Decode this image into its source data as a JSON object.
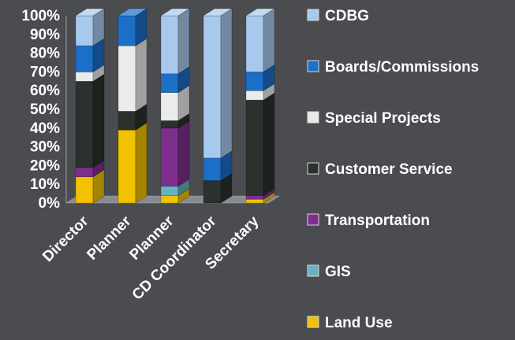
{
  "chart_data": {
    "type": "bar",
    "stacked": true,
    "percent": true,
    "three_d": true,
    "title": "",
    "xlabel": "",
    "ylabel": "",
    "ylim": [
      0,
      100
    ],
    "y_ticks": [
      "0%",
      "10%",
      "20%",
      "30%",
      "40%",
      "50%",
      "60%",
      "70%",
      "80%",
      "90%",
      "100%"
    ],
    "categories": [
      "Director",
      "Planner",
      "Planner",
      "CD Coordinator",
      "Secretary"
    ],
    "series": [
      {
        "name": "Land Use",
        "color": "#f2c200",
        "values": [
          14,
          39,
          4,
          0,
          2
        ]
      },
      {
        "name": "GIS",
        "color": "#66b3c0",
        "values": [
          0,
          0,
          5,
          0,
          0
        ]
      },
      {
        "name": "Transportation",
        "color": "#7e2f8e",
        "values": [
          5,
          0,
          31,
          0,
          2
        ]
      },
      {
        "name": "Customer Service",
        "color": "#2b322e",
        "values": [
          46,
          10,
          4,
          12,
          51
        ]
      },
      {
        "name": "Special Projects",
        "color": "#ebebeb",
        "values": [
          5,
          35,
          15,
          0,
          5
        ]
      },
      {
        "name": "Boards/Commissions",
        "color": "#1b6fc7",
        "values": [
          14,
          16,
          10,
          12,
          10
        ]
      },
      {
        "name": "CDBG",
        "color": "#a7c9ee",
        "values": [
          16,
          0,
          31,
          76,
          30
        ]
      }
    ],
    "legend_order": [
      "CDBG",
      "Boards/Commissions",
      "Special Projects",
      "Customer Service",
      "Transportation",
      "GIS",
      "Land Use"
    ],
    "legend_position": "right",
    "grid": false
  }
}
